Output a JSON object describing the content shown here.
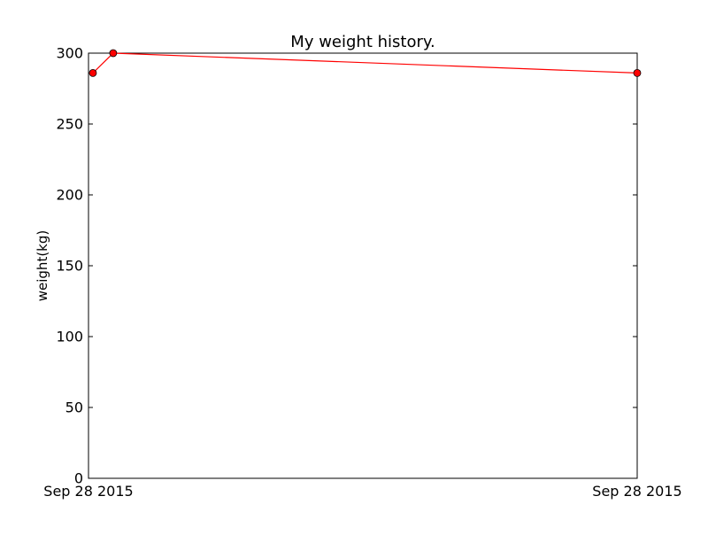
{
  "chart_data": {
    "type": "line",
    "title": "My weight history.",
    "xlabel": "",
    "ylabel": "weight(kg)",
    "x_ticks": [
      {
        "label": "Sep 28 2015",
        "t": 0
      },
      {
        "label": "Sep 28 2015",
        "t": 1
      }
    ],
    "y_ticks": [
      0,
      50,
      100,
      150,
      200,
      250,
      300
    ],
    "ylim": [
      0,
      300
    ],
    "series": [
      {
        "color": "#ff0000",
        "marker_color": "#ff0000",
        "points": [
          {
            "t": 0.008,
            "y": 286
          },
          {
            "t": 0.045,
            "y": 300
          },
          {
            "t": 1.0,
            "y": 286
          }
        ]
      }
    ],
    "grid": false
  }
}
